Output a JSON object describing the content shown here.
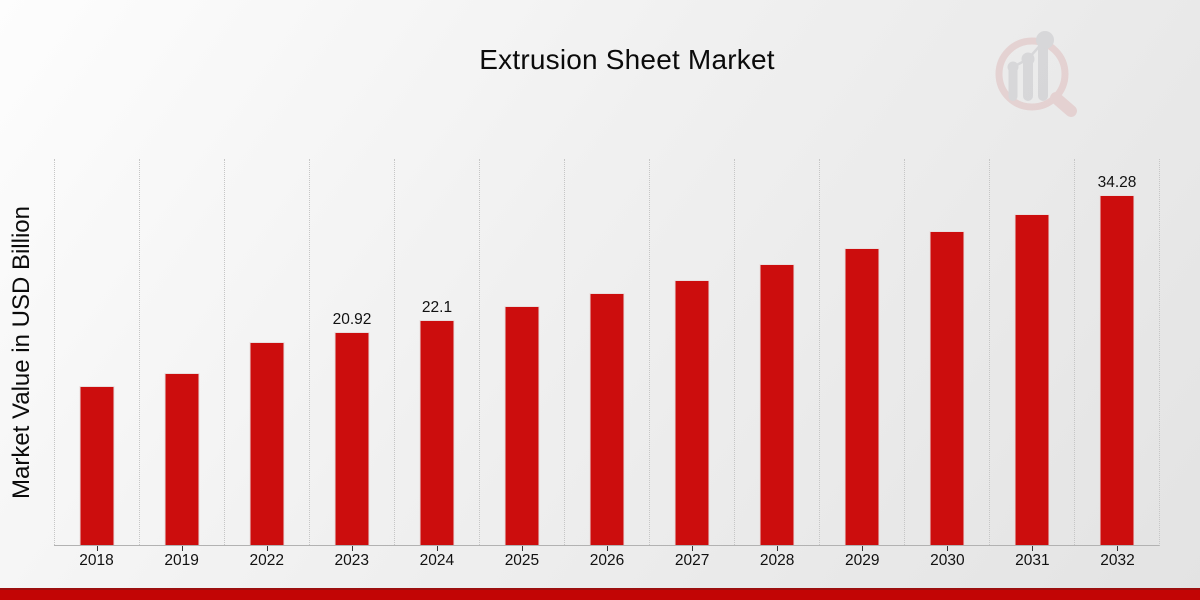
{
  "page": {
    "title": "Extrusion Sheet Market",
    "footer_stripe_color": "#c20505",
    "background_gradient": [
      "#fdfdfd",
      "#e3e3e3"
    ]
  },
  "watermark": {
    "icon": "magnifier-bar-chart-logo",
    "ring_color": "#ddb5b5",
    "bars_color": "#bfbfc4"
  },
  "chart_data": {
    "type": "bar",
    "title": "Extrusion Sheet Market",
    "xlabel": "",
    "ylabel": "Market Value in USD Billion",
    "categories": [
      "2018",
      "2019",
      "2022",
      "2023",
      "2024",
      "2025",
      "2026",
      "2027",
      "2028",
      "2029",
      "2030",
      "2031",
      "2032"
    ],
    "values": [
      15.6,
      16.9,
      19.9,
      20.92,
      22.1,
      23.4,
      24.7,
      26.0,
      27.6,
      29.1,
      30.8,
      32.5,
      34.28
    ],
    "data_labels": [
      "",
      "",
      "",
      "20.92",
      "22.1",
      "",
      "",
      "",
      "",
      "",
      "",
      "",
      "34.28"
    ],
    "bar_color": "#cc0d0d",
    "ylim": [
      0,
      37.85
    ],
    "grid": "vertical-dotted",
    "legend": "none",
    "y_tick_labels": "none"
  }
}
